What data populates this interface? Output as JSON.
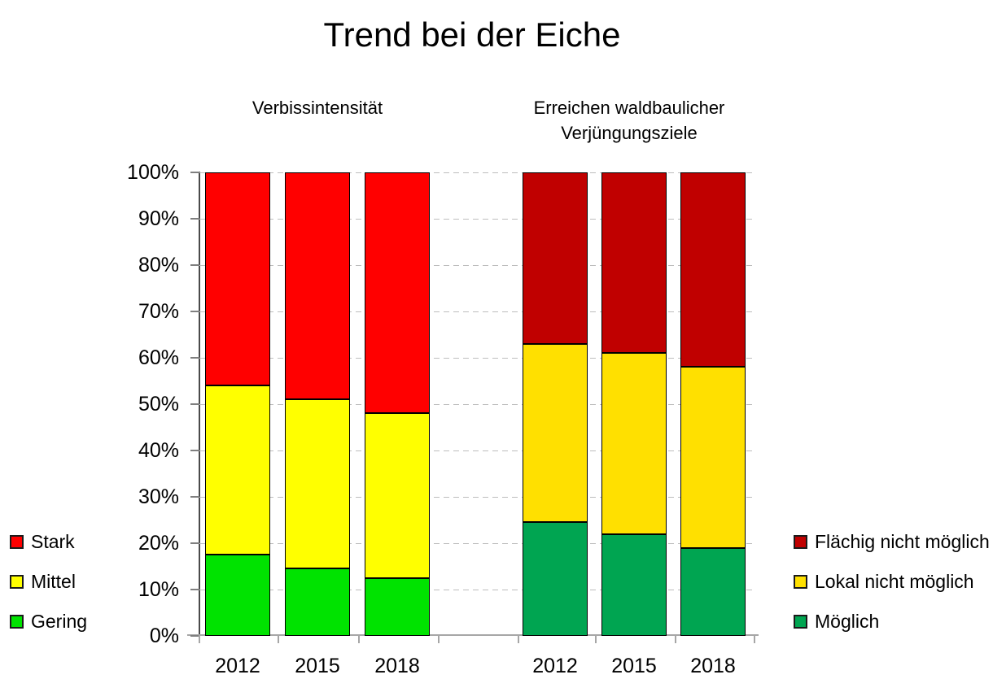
{
  "title": "Trend bei der Eiche",
  "y_tick_labels": [
    "0%",
    "10%",
    "20%",
    "30%",
    "40%",
    "50%",
    "60%",
    "70%",
    "80%",
    "90%",
    "100%"
  ],
  "chart_data": [
    {
      "type": "bar",
      "stacked": true,
      "title": "Verbissintensität",
      "title_lines": [
        "Verbissintensität"
      ],
      "categories": [
        "2012",
        "2015",
        "2018"
      ],
      "series": [
        {
          "name": "Gering",
          "color": "#00E300",
          "values": [
            17.5,
            14.5,
            12.5
          ]
        },
        {
          "name": "Mittel",
          "color": "#FFFF00",
          "values": [
            36.5,
            36.5,
            35.5
          ]
        },
        {
          "name": "Stark",
          "color": "#FF0000",
          "values": [
            46,
            49,
            52
          ]
        }
      ],
      "xlabel": "",
      "ylabel": "",
      "ylim": [
        0,
        100
      ],
      "grid": "dashed-horizontal",
      "legend_position": "left"
    },
    {
      "type": "bar",
      "stacked": true,
      "title": "Erreichen waldbaulicher Verjüngungsziele",
      "title_lines": [
        "Erreichen waldbaulicher",
        "Verjüngungsziele"
      ],
      "categories": [
        "2012",
        "2015",
        "2018"
      ],
      "series": [
        {
          "name": "Möglich",
          "color": "#00A551",
          "values": [
            24.5,
            22,
            19
          ]
        },
        {
          "name": "Lokal nicht möglich",
          "color": "#FFE000",
          "values": [
            38.5,
            39,
            39
          ]
        },
        {
          "name": "Flächig nicht möglich",
          "color": "#C00000",
          "values": [
            37,
            39,
            42
          ]
        }
      ],
      "xlabel": "",
      "ylabel": "",
      "ylim": [
        0,
        100
      ],
      "grid": "dashed-horizontal",
      "legend_position": "right"
    }
  ]
}
